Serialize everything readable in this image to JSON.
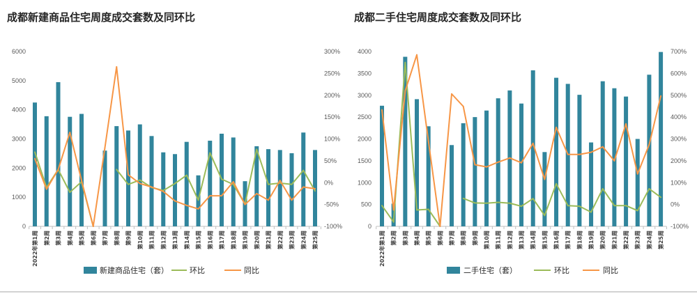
{
  "chart_data": [
    {
      "type": "bar",
      "title": "成都新建商品住宅周度成交套数及同环比",
      "xlabel": "",
      "ylabel": "",
      "categories": [
        "2022年第1周",
        "第2周",
        "第3周",
        "第4周",
        "第5周",
        "第6周",
        "第7周",
        "第8周",
        "第9周",
        "第10周",
        "第11周",
        "第12周",
        "第13周",
        "第14周",
        "第15周",
        "第16周",
        "第17周",
        "第18周",
        "第19周",
        "第20周",
        "第21周",
        "第22周",
        "第23周",
        "第24周",
        "第25周"
      ],
      "series": [
        {
          "name": "新建商品住宅（套）",
          "type": "bar",
          "color": "#31859C",
          "values": [
            4250,
            3780,
            4950,
            3760,
            3860,
            0,
            2600,
            3440,
            3290,
            3500,
            3100,
            2540,
            2480,
            2900,
            1750,
            2940,
            3180,
            3050,
            1550,
            2750,
            2650,
            2620,
            2510,
            3220,
            2620
          ]
        },
        {
          "name": "环比",
          "type": "line",
          "secondary_axis": true,
          "color": "#9BBB59",
          "values": [
            70,
            -11,
            30,
            -22,
            2,
            -100,
            null,
            30,
            -4,
            6,
            -11,
            -18,
            -2,
            17,
            -40,
            68,
            8,
            -4,
            -49,
            76,
            -4,
            -1,
            -4,
            28,
            -19
          ]
        },
        {
          "name": "同比",
          "type": "line",
          "secondary_axis": true,
          "color": "#F79646",
          "values": [
            55,
            -15,
            30,
            115,
            5,
            -100,
            80,
            265,
            18,
            -2,
            -10,
            -20,
            -42,
            -52,
            -60,
            -30,
            -30,
            2,
            -50,
            -25,
            -40,
            5,
            -40,
            -10,
            -14
          ]
        }
      ],
      "y_left": {
        "min": 0,
        "max": 6000,
        "ticks": [
          "0",
          "1000",
          "2000",
          "3000",
          "4000",
          "5000",
          "6000"
        ]
      },
      "y_right": {
        "min": -100,
        "max": 300,
        "ticks": [
          "-100%",
          "-50%",
          "0%",
          "50%",
          "100%",
          "150%",
          "200%",
          "250%",
          "300%"
        ]
      },
      "legend": "bottom",
      "grid": false
    },
    {
      "type": "bar",
      "title": "成都二手住宅周度成交套数及同环比",
      "xlabel": "",
      "ylabel": "",
      "categories": [
        "2022年第1周",
        "第2周",
        "第3周",
        "第4周",
        "第5周",
        "第6周",
        "第7周",
        "第8周",
        "第9周",
        "第10周",
        "第11周",
        "第12周",
        "第13周",
        "第14周",
        "第15周",
        "第16周",
        "第17周",
        "第18周",
        "第19周",
        "第20周",
        "第21周",
        "第22周",
        "第23周",
        "第24周",
        "第25周"
      ],
      "series": [
        {
          "name": "二手住宅（套）",
          "type": "bar",
          "color": "#31859C",
          "values": [
            2760,
            520,
            3880,
            2910,
            2290,
            0,
            1860,
            2360,
            2500,
            2650,
            2930,
            3110,
            2810,
            3570,
            1700,
            3400,
            3260,
            3010,
            1920,
            3320,
            3160,
            2970,
            2000,
            3470,
            3990
          ]
        },
        {
          "name": "环比",
          "type": "line",
          "secondary_axis": true,
          "color": "#9BBB59",
          "values": [
            -5,
            -80,
            650,
            -25,
            -22,
            -100,
            null,
            28,
            7,
            6,
            10,
            6,
            -8,
            27,
            -50,
            95,
            -5,
            -8,
            -35,
            72,
            -5,
            -5,
            -28,
            72,
            33
          ]
        },
        {
          "name": "同比",
          "type": "line",
          "secondary_axis": true,
          "color": "#F79646",
          "values": [
            433,
            -25,
            520,
            685,
            290,
            -100,
            506,
            449,
            182,
            172,
            194,
            213,
            191,
            280,
            115,
            353,
            229,
            229,
            239,
            264,
            200,
            369,
            140,
            274,
            497
          ]
        }
      ],
      "y_left": {
        "min": 0,
        "max": 4000,
        "ticks": [
          "0",
          "500",
          "1000",
          "1500",
          "2000",
          "2500",
          "3000",
          "3500",
          "4000"
        ]
      },
      "y_right": {
        "min": -100,
        "max": 700,
        "ticks": [
          "-100%",
          "0%",
          "100%",
          "200%",
          "300%",
          "400%",
          "500%",
          "600%",
          "700%"
        ]
      },
      "legend": "bottom",
      "grid": false
    }
  ]
}
